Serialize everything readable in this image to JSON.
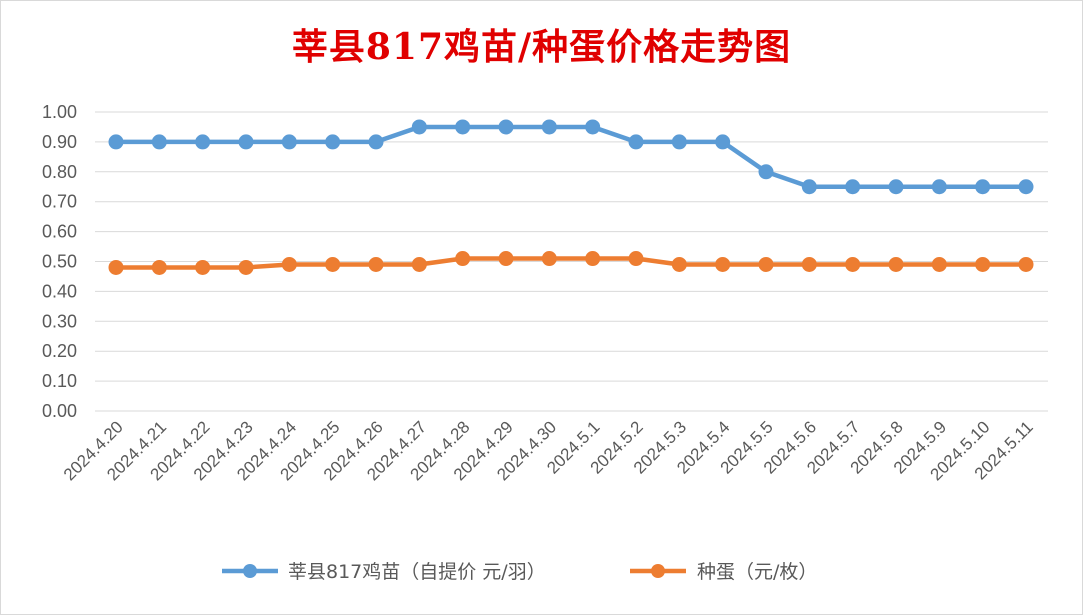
{
  "chart_data": {
    "type": "line",
    "title": "莘县817鸡苗/种蛋价格走势图",
    "categories": [
      "2024.4.20",
      "2024.4.21",
      "2024.4.22",
      "2024.4.23",
      "2024.4.24",
      "2024.4.25",
      "2024.4.26",
      "2024.4.27",
      "2024.4.28",
      "2024.4.29",
      "2024.4.30",
      "2024.5.1",
      "2024.5.2",
      "2024.5.3",
      "2024.5.4",
      "2024.5.5",
      "2024.5.6",
      "2024.5.7",
      "2024.5.8",
      "2024.5.9",
      "2024.5.10",
      "2024.5.11"
    ],
    "series": [
      {
        "name": "莘县817鸡苗（自提价 元/羽）",
        "color": "#5b9bd5",
        "values": [
          0.9,
          0.9,
          0.9,
          0.9,
          0.9,
          0.9,
          0.9,
          0.95,
          0.95,
          0.95,
          0.95,
          0.95,
          0.9,
          0.9,
          0.9,
          0.8,
          0.75,
          0.75,
          0.75,
          0.75,
          0.75,
          0.75
        ]
      },
      {
        "name": "种蛋（元/枚）",
        "color": "#ed7d31",
        "values": [
          0.48,
          0.48,
          0.48,
          0.48,
          0.49,
          0.49,
          0.49,
          0.49,
          0.51,
          0.51,
          0.51,
          0.51,
          0.51,
          0.49,
          0.49,
          0.49,
          0.49,
          0.49,
          0.49,
          0.49,
          0.49,
          0.49
        ]
      }
    ],
    "yticks": [
      "0.00",
      "0.10",
      "0.20",
      "0.30",
      "0.40",
      "0.50",
      "0.60",
      "0.70",
      "0.80",
      "0.90",
      "1.00"
    ],
    "ylim": [
      0,
      1.0
    ],
    "grid": true,
    "legend": "bottom"
  }
}
